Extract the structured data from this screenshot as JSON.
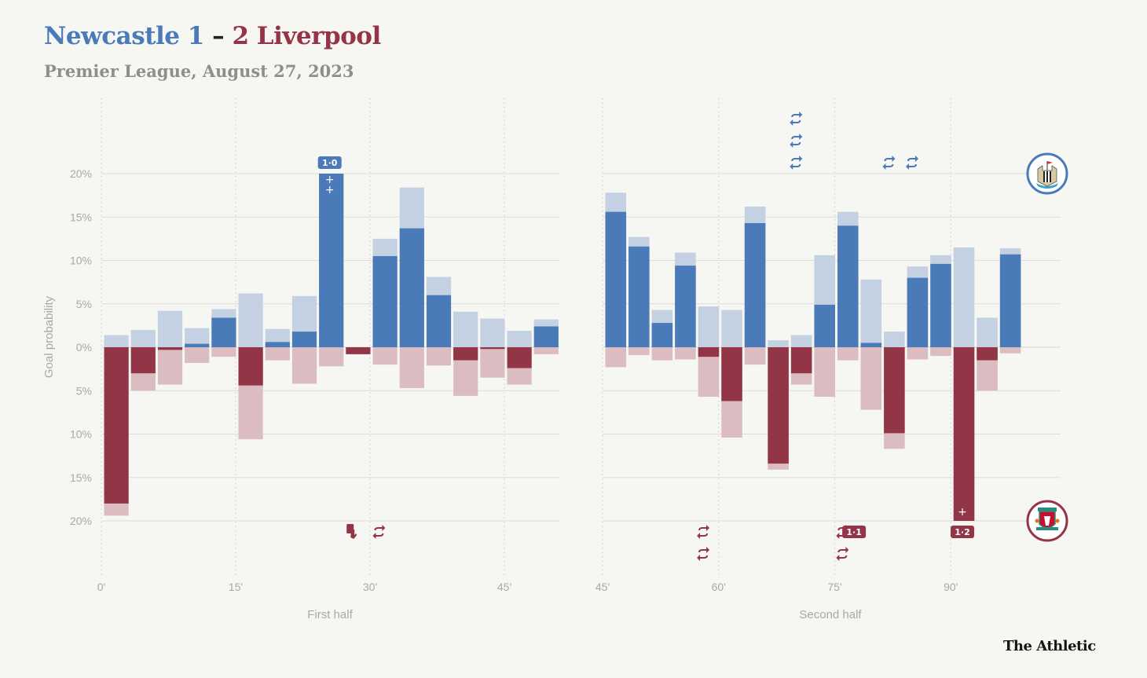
{
  "header": {
    "home_label": "Newcastle 1",
    "dash": "–",
    "away_label": "2 Liverpool",
    "subtitle": "Premier League, August 27, 2023"
  },
  "brand": "The Athletic",
  "colors": {
    "home": "#4a7ab7",
    "home_light": "#c3d1e2",
    "away": "#923647",
    "away_light": "#dbbcc1",
    "grid": "#dcdcd8",
    "background": "#f6f6f2"
  },
  "chart_data": {
    "type": "bar",
    "ylabel": "Goal probability",
    "ylim": [
      -20,
      20
    ],
    "yticks": [
      20,
      15,
      10,
      5,
      0,
      -5,
      -10,
      -15,
      -20
    ],
    "ytick_labels": [
      "20%",
      "15%",
      "10%",
      "5%",
      "0%",
      "5%",
      "10%",
      "15%",
      "20%"
    ],
    "bin_minutes": 3,
    "teams": {
      "up": "Newcastle",
      "down": "Liverpool"
    },
    "panels": [
      {
        "name": "First half",
        "xlabel": "First half",
        "xstart": 0,
        "xend": 51,
        "xticks": [
          0,
          15,
          30,
          45
        ],
        "xtick_labels": [
          "0'",
          "15'",
          "30'",
          "45'"
        ],
        "newcastle_actual": [
          0,
          0,
          0,
          0.4,
          3.4,
          0,
          0.6,
          1.8,
          20,
          0,
          10.5,
          13.7,
          6.0,
          0,
          0,
          0,
          2.4
        ],
        "newcastle_potential": [
          1.4,
          2.0,
          4.2,
          2.2,
          4.4,
          6.2,
          2.1,
          5.9,
          20,
          0,
          12.5,
          18.4,
          8.1,
          4.1,
          3.3,
          1.9,
          3.2
        ],
        "liverpool_actual": [
          18.0,
          3.0,
          0.3,
          0,
          0,
          4.4,
          0,
          0,
          0,
          0.8,
          0,
          0,
          0,
          1.5,
          0.2,
          2.4,
          0
        ],
        "liverpool_potential": [
          19.4,
          5.0,
          4.3,
          1.8,
          1.1,
          10.6,
          1.5,
          4.2,
          2.2,
          0.8,
          2.0,
          4.7,
          2.1,
          5.6,
          3.5,
          4.3,
          0.8
        ],
        "events": [
          {
            "team": "Newcastle",
            "type": "goal",
            "minute": 25.5,
            "score": "1-0",
            "goal_marks": 2
          },
          {
            "team": "Liverpool",
            "type": "red-card",
            "minute": 28
          },
          {
            "team": "Liverpool",
            "type": "substitution",
            "minute": 31
          }
        ]
      },
      {
        "name": "Second half",
        "xlabel": "Second half",
        "xstart": 45,
        "xend": 99,
        "xticks": [
          45,
          60,
          75,
          90
        ],
        "xtick_labels": [
          "45'",
          "60'",
          "75'",
          "90'"
        ],
        "newcastle_actual": [
          15.6,
          11.6,
          2.8,
          9.4,
          0,
          0,
          14.3,
          0,
          0,
          4.9,
          14.0,
          0.5,
          0,
          8.0,
          9.6,
          0,
          0,
          10.7
        ],
        "newcastle_potential": [
          17.8,
          12.7,
          4.3,
          10.9,
          4.7,
          4.3,
          16.2,
          0.8,
          1.4,
          10.6,
          15.6,
          7.8,
          1.8,
          9.3,
          10.6,
          11.5,
          3.4,
          11.4
        ],
        "liverpool_actual": [
          0,
          0,
          0,
          0,
          1.1,
          6.2,
          0,
          13.4,
          3.0,
          0,
          0,
          0,
          9.9,
          0,
          0,
          20,
          1.5,
          0
        ],
        "liverpool_potential": [
          2.3,
          0.9,
          1.5,
          1.4,
          5.7,
          10.4,
          2.0,
          14.1,
          4.3,
          5.7,
          1.5,
          7.2,
          11.7,
          1.4,
          1.0,
          20,
          5.0,
          0.7
        ],
        "events": [
          {
            "team": "Newcastle",
            "type": "substitution",
            "minute": 70,
            "count": 3
          },
          {
            "team": "Newcastle",
            "type": "substitution",
            "minute": 82,
            "count": 1
          },
          {
            "team": "Newcastle",
            "type": "substitution",
            "minute": 85,
            "count": 1
          },
          {
            "team": "Liverpool",
            "type": "substitution",
            "minute": 58,
            "count": 2
          },
          {
            "team": "Liverpool",
            "type": "substitution",
            "minute": 76,
            "count": 2
          },
          {
            "team": "Liverpool",
            "type": "goal",
            "minute": 77.5,
            "score": "1-1"
          },
          {
            "team": "Liverpool",
            "type": "goal",
            "minute": 91.5,
            "score": "1-2",
            "goal_marks": 1
          }
        ]
      }
    ]
  }
}
